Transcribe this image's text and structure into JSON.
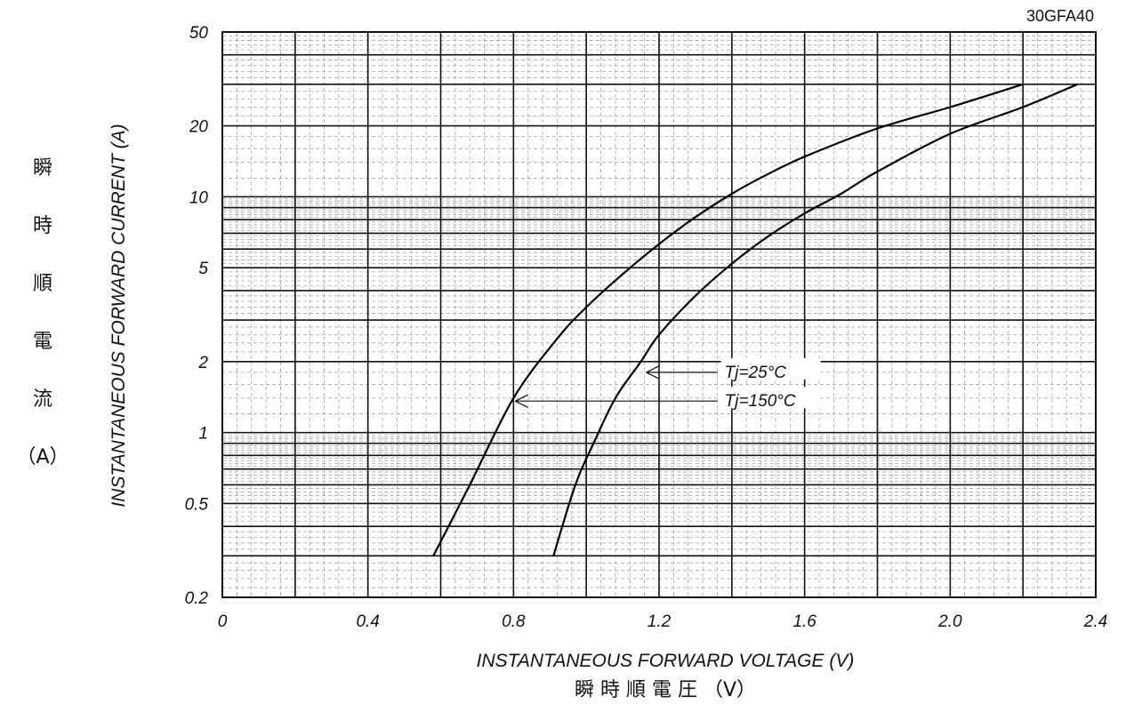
{
  "chart_data": {
    "type": "line",
    "model": "30GFA40",
    "xlabel": "INSTANTANEOUS FORWARD VOLTAGE (V)",
    "xlabel_jp": "瞬 時 順 電 圧 （V）",
    "ylabel": "INSTANTANEOUS FORWARD CURRENT (A)",
    "ylabel_jp": [
      "瞬",
      "時",
      "順",
      "電",
      "流",
      "（A）"
    ],
    "xlim": [
      0,
      2.4
    ],
    "ylim": [
      0.2,
      50
    ],
    "yscale": "log",
    "grid": true,
    "x_ticks": [
      "0",
      "0.4",
      "0.8",
      "1.2",
      "1.6",
      "2.0",
      "2.4"
    ],
    "y_ticks": [
      {
        "value": 50,
        "label": "50"
      },
      {
        "value": 20,
        "label": "20"
      },
      {
        "value": 10,
        "label": "10"
      },
      {
        "value": 5,
        "label": "5"
      },
      {
        "value": 2,
        "label": "2"
      },
      {
        "value": 1,
        "label": "1"
      },
      {
        "value": 0.5,
        "label": "0.5"
      },
      {
        "value": 0.2,
        "label": "0.2"
      }
    ],
    "series": [
      {
        "name": "Tj=150°C",
        "points": [
          [
            0.58,
            0.3
          ],
          [
            0.68,
            0.6
          ],
          [
            0.8,
            1.4
          ],
          [
            0.92,
            2.5
          ],
          [
            1.0,
            3.4
          ],
          [
            1.1,
            4.7
          ],
          [
            1.2,
            6.3
          ],
          [
            1.3,
            8.2
          ],
          [
            1.4,
            10.3
          ],
          [
            1.5,
            12.5
          ],
          [
            1.6,
            14.8
          ],
          [
            1.8,
            19.5
          ],
          [
            2.0,
            24
          ],
          [
            2.2,
            30
          ]
        ]
      },
      {
        "name": "Tj=25°C",
        "points": [
          [
            0.91,
            0.3
          ],
          [
            0.97,
            0.6
          ],
          [
            1.02,
            0.9
          ],
          [
            1.08,
            1.4
          ],
          [
            1.15,
            2.0
          ],
          [
            1.2,
            2.6
          ],
          [
            1.3,
            3.8
          ],
          [
            1.4,
            5.2
          ],
          [
            1.5,
            6.8
          ],
          [
            1.6,
            8.5
          ],
          [
            1.7,
            10.3
          ],
          [
            1.8,
            12.8
          ],
          [
            2.0,
            18.5
          ],
          [
            2.2,
            24
          ],
          [
            2.35,
            30
          ]
        ]
      }
    ],
    "annotations": [
      {
        "series": "Tj=25°C",
        "text": "Tj=25°C",
        "anchor": [
          1.16,
          1.8
        ],
        "label_at": [
          1.38,
          1.8
        ]
      },
      {
        "series": "Tj=150°C",
        "text": "Tj=150°C",
        "anchor": [
          0.8,
          1.36
        ],
        "label_at": [
          1.38,
          1.36
        ]
      }
    ]
  }
}
